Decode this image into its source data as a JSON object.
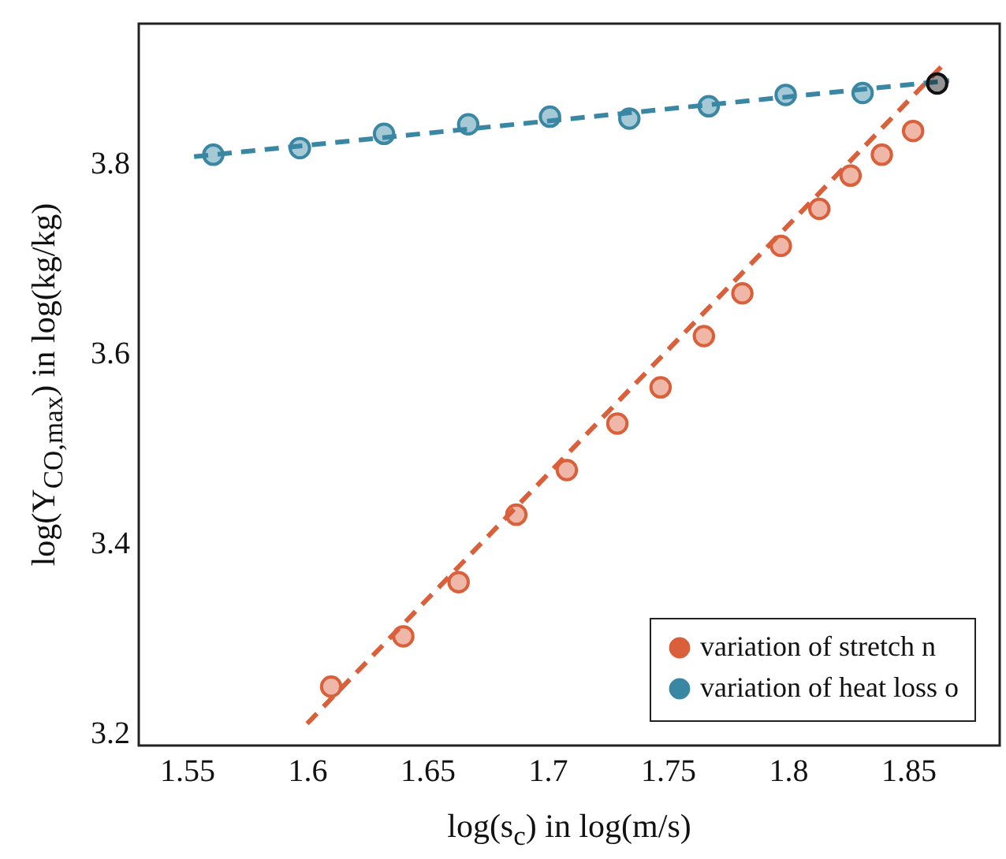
{
  "chart_data": {
    "type": "scatter",
    "xlabel": "log(s$_{c}$) in log(m/s)",
    "ylabel": "log(Y$_{CO,max}$) in log(kg/kg)",
    "xlim": [
      1.53,
      1.888
    ],
    "ylim": [
      3.187,
      3.947
    ],
    "xticks": [
      1.55,
      1.6,
      1.65,
      1.7,
      1.75,
      1.8,
      1.85
    ],
    "yticks": [
      3.2,
      3.4,
      3.6,
      3.8
    ],
    "grid": false,
    "legend": "bottom right",
    "series": [
      {
        "name": "variation of stretch n",
        "color": "#d9603b",
        "marker": "circle",
        "x": [
          1.61,
          1.64,
          1.663,
          1.687,
          1.708,
          1.729,
          1.747,
          1.765,
          1.781,
          1.797,
          1.813,
          1.826,
          1.839,
          1.852
        ],
        "values": [
          3.249,
          3.302,
          3.359,
          3.43,
          3.477,
          3.526,
          3.564,
          3.618,
          3.663,
          3.713,
          3.752,
          3.787,
          3.809,
          3.834
        ]
      },
      {
        "name": "variation of heat loss o",
        "color": "#3a87a4",
        "marker": "circle",
        "x": [
          1.561,
          1.597,
          1.632,
          1.667,
          1.701,
          1.734,
          1.767,
          1.799,
          1.831
        ],
        "values": [
          3.809,
          3.816,
          3.831,
          3.841,
          3.849,
          3.847,
          3.86,
          3.872,
          3.874
        ]
      },
      {
        "color": "#d9603b",
        "type": "line",
        "line_style": "dashed",
        "x": [
          1.6,
          1.865
        ],
        "values": [
          3.21,
          3.905
        ]
      },
      {
        "color": "#3a87a4",
        "type": "line",
        "line_style": "dashed",
        "x": [
          1.553,
          1.867
        ],
        "values": [
          3.807,
          3.887
        ]
      },
      {
        "color": "#111111",
        "marker": "circle",
        "x": [
          1.862
        ],
        "values": [
          3.884
        ]
      }
    ]
  }
}
